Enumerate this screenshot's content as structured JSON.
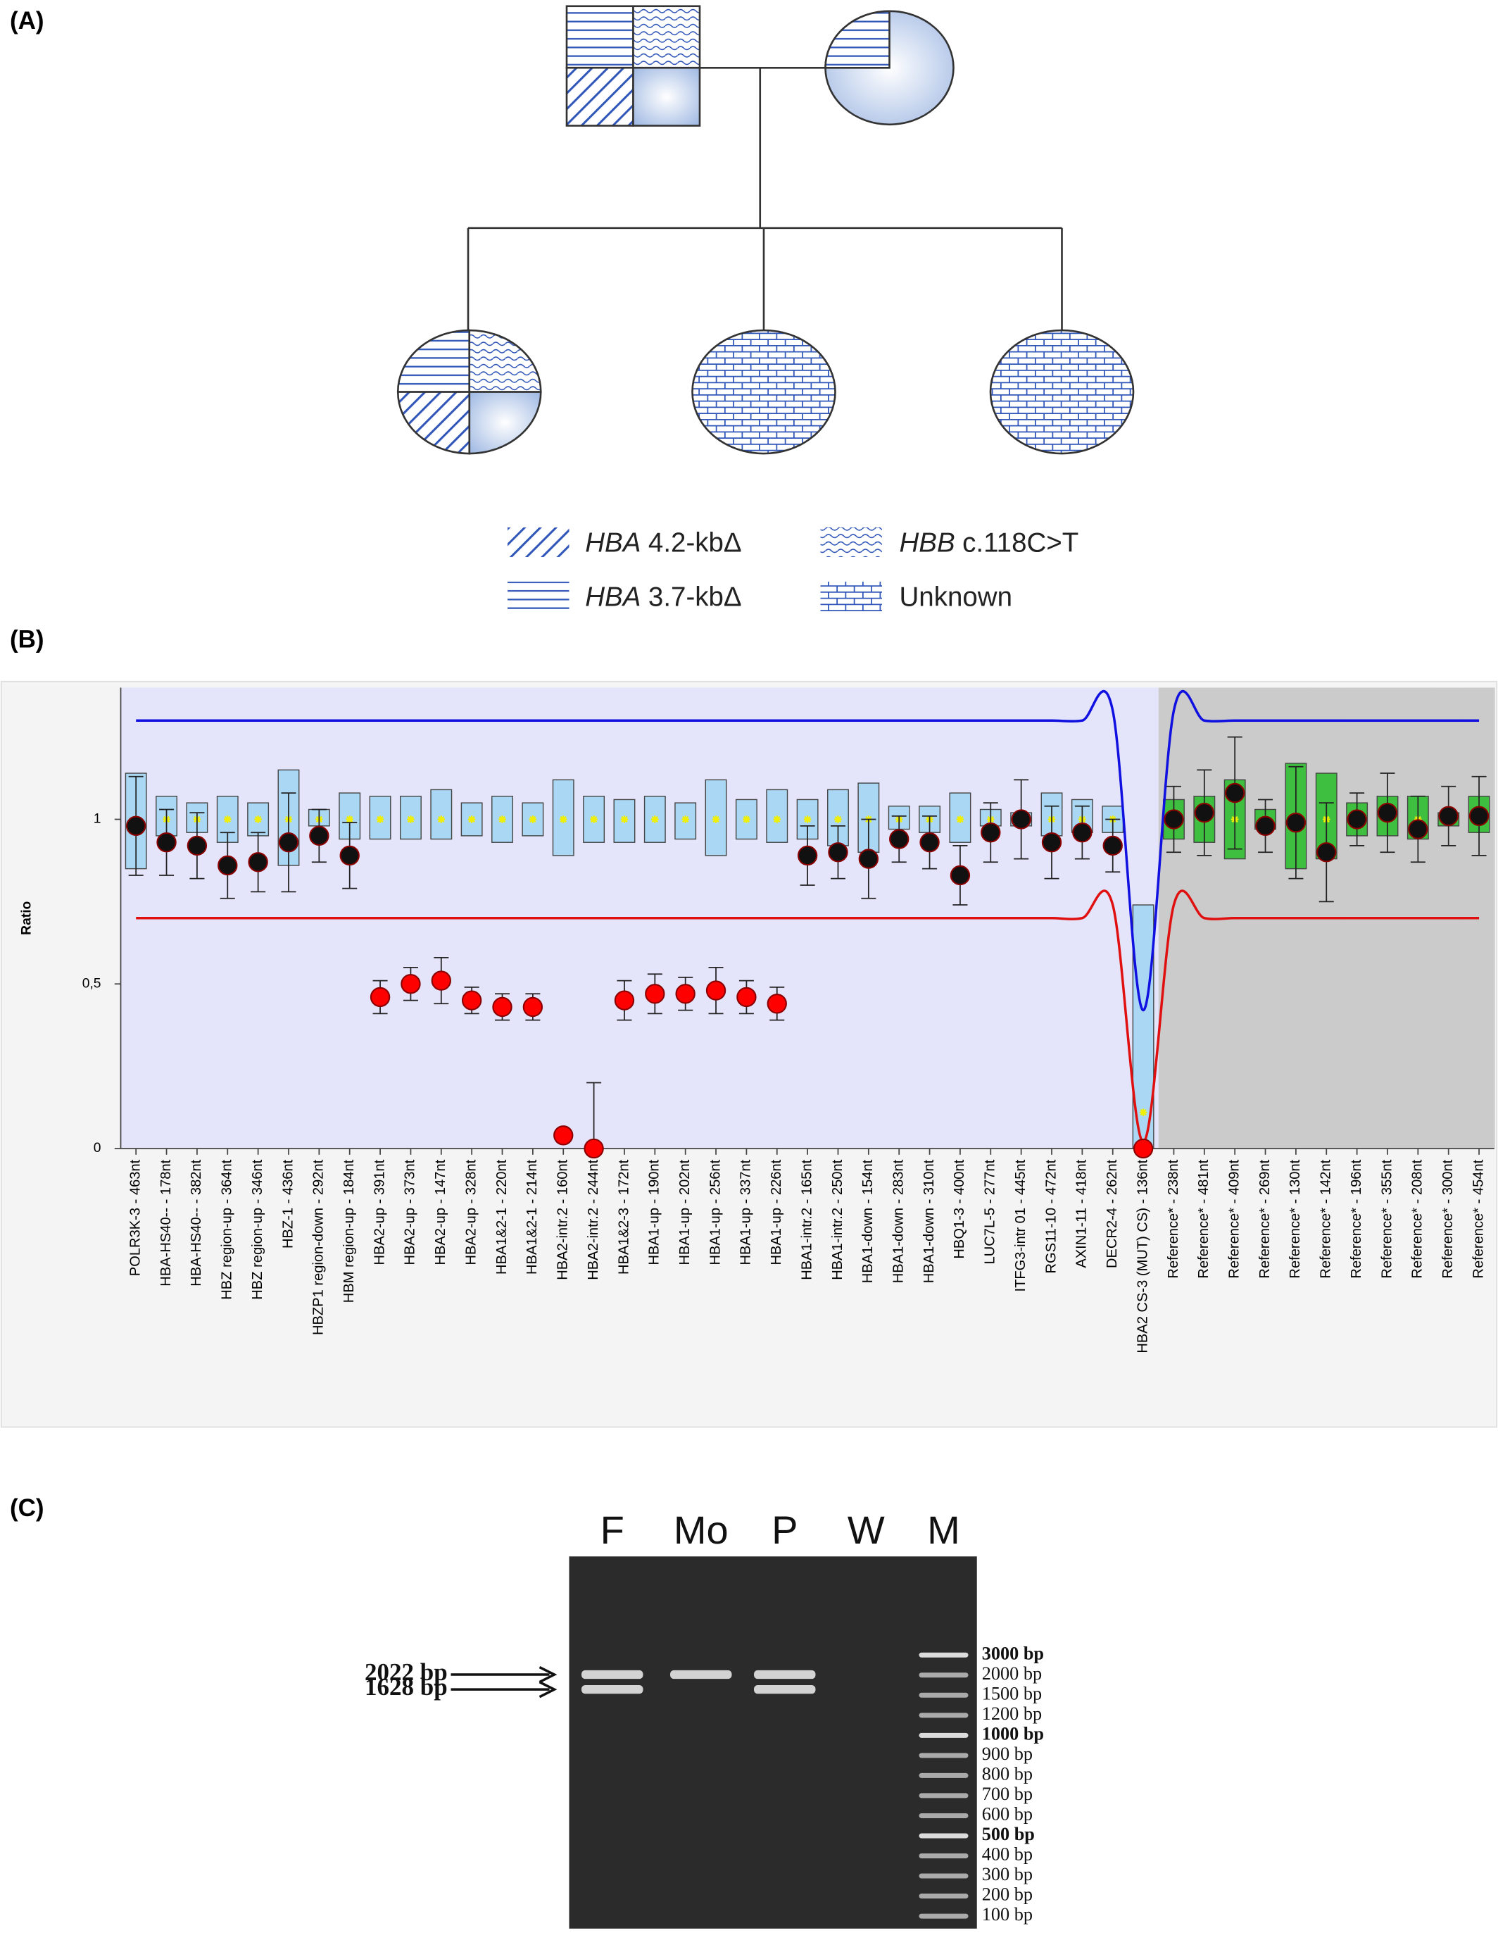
{
  "panel_labels": [
    "(A)",
    "(B)",
    "(C)"
  ],
  "pedigree": {
    "legend": [
      {
        "gene": "HBA",
        "text": "4.2-kbΔ"
      },
      {
        "gene": "HBB",
        "text": "c.118C>T"
      },
      {
        "gene": "HBA",
        "text": "3.7-kbΔ"
      },
      {
        "text": "Unknown"
      }
    ]
  },
  "chart_data": {
    "type": "box",
    "ylabel": "Ratio",
    "ylim": [
      0,
      1.4
    ],
    "yticks": [
      0,
      {
        "value": 0.5,
        "label": "0,5"
      },
      1
    ],
    "categories": [
      "POLR3K-3 - 463nt",
      "HBA-HS40-- - 178nt",
      "HBA-HS40-- - 382nt",
      "HBZ region-up - 364nt",
      "HBZ region-up - 346nt",
      "HBZ-1 - 436nt",
      "HBZP1 region-down - 292nt",
      "HBM region-up - 184nt",
      "HBA2-up - 391nt",
      "HBA2-up - 373nt",
      "HBA2-up - 147nt",
      "HBA2-up - 328nt",
      "HBA1&2-1 - 220nt",
      "HBA1&2-1 - 214nt",
      "HBA2-intr.2 - 160nt",
      "HBA2-intr.2 - 244nt",
      "HBA1&2-3 - 172nt",
      "HBA1-up - 190nt",
      "HBA1-up - 202nt",
      "HBA1-up - 256nt",
      "HBA1-up - 337nt",
      "HBA1-up - 226nt",
      "HBA1-intr.2 - 165nt",
      "HBA1-intr.2 - 250nt",
      "HBA1-down - 154nt",
      "HBA1-down - 283nt",
      "HBA1-down - 310nt",
      "HBQ1-3 - 400nt",
      "LUC7L-5 - 277nt",
      "ITFG3-intr 01 - 445nt",
      "RGS11-10 - 472nt",
      "AXIN1-11 - 418nt",
      "DECR2-4 - 262nt",
      "HBA2 CS-3 (MUT) CS) - 136nt",
      "Reference* - 238nt",
      "Reference* - 481nt",
      "Reference* - 409nt",
      "Reference* - 269nt",
      "Reference* - 130nt",
      "Reference* - 142nt",
      "Reference* - 196nt",
      "Reference* - 355nt",
      "Reference* - 208nt",
      "Reference* - 300nt",
      "Reference* - 454nt"
    ],
    "values": [
      0.98,
      0.93,
      0.92,
      0.86,
      0.87,
      0.93,
      0.95,
      0.89,
      0.46,
      0.5,
      0.51,
      0.45,
      0.43,
      0.43,
      0.04,
      0,
      0.45,
      0.47,
      0.47,
      0.48,
      0.46,
      0.44,
      0.89,
      0.9,
      0.88,
      0.94,
      0.93,
      0.83,
      0.96,
      1.0,
      0.93,
      0.96,
      0.92,
      0,
      1.0,
      1.02,
      1.08,
      0.98,
      0.99,
      0.9,
      1.0,
      1.02,
      0.97,
      1.01,
      1.01
    ],
    "errors": [
      0.15,
      0.1,
      0.1,
      0.1,
      0.09,
      0.15,
      0.08,
      0.1,
      0.05,
      0.05,
      0.07,
      0.04,
      0.04,
      0.04,
      0.01,
      0.2,
      0.06,
      0.06,
      0.05,
      0.07,
      0.05,
      0.05,
      0.09,
      0.08,
      0.12,
      0.07,
      0.08,
      0.09,
      0.09,
      0.12,
      0.11,
      0.08,
      0.08,
      0,
      0.1,
      0.13,
      0.17,
      0.08,
      0.17,
      0.15,
      0.08,
      0.12,
      0.1,
      0.09,
      0.12
    ],
    "box_low": [
      0.85,
      0.95,
      0.96,
      0.93,
      0.95,
      0.86,
      0.98,
      0.94,
      0.94,
      0.94,
      0.94,
      0.95,
      0.93,
      0.95,
      0.89,
      0.93,
      0.93,
      0.93,
      0.94,
      0.89,
      0.94,
      0.93,
      0.94,
      0.92,
      0.9,
      0.97,
      0.96,
      0.93,
      0.98,
      0.98,
      0.95,
      0.96,
      0.96,
      0,
      0.94,
      0.93,
      0.88,
      0.97,
      0.85,
      0.88,
      0.95,
      0.95,
      0.94,
      0.98,
      0.96
    ],
    "box_high": [
      1.14,
      1.07,
      1.05,
      1.07,
      1.05,
      1.15,
      1.03,
      1.08,
      1.07,
      1.07,
      1.09,
      1.05,
      1.07,
      1.05,
      1.12,
      1.07,
      1.06,
      1.07,
      1.05,
      1.12,
      1.06,
      1.09,
      1.06,
      1.09,
      1.11,
      1.04,
      1.04,
      1.08,
      1.03,
      1.02,
      1.08,
      1.06,
      1.04,
      0.74,
      1.06,
      1.07,
      1.12,
      1.03,
      1.17,
      1.14,
      1.05,
      1.07,
      1.07,
      1.02,
      1.07
    ],
    "medians": [
      1,
      1,
      1,
      1,
      1,
      1,
      1,
      1,
      1,
      1,
      1,
      1,
      1,
      1,
      1,
      1,
      1,
      1,
      1,
      1,
      1,
      1,
      1,
      1,
      1,
      1,
      1,
      1,
      1,
      1,
      1,
      1,
      1,
      0.11,
      1,
      1,
      1,
      1,
      1,
      1,
      1,
      1,
      1,
      1,
      1
    ],
    "upper_limit": [
      1.3,
      1.3,
      1.3,
      1.3,
      1.3,
      1.3,
      1.3,
      1.3,
      1.3,
      1.3,
      1.3,
      1.3,
      1.3,
      1.3,
      1.3,
      1.3,
      1.3,
      1.3,
      1.3,
      1.3,
      1.3,
      1.3,
      1.3,
      1.3,
      1.3,
      1.3,
      1.3,
      1.3,
      1.3,
      1.3,
      1.3,
      1.3,
      1.33,
      0.42,
      1.33,
      1.3,
      1.3,
      1.3,
      1.3,
      1.3,
      1.3,
      1.3,
      1.3,
      1.3,
      1.3
    ],
    "lower_limit": [
      0.7,
      0.7,
      0.7,
      0.7,
      0.7,
      0.7,
      0.7,
      0.7,
      0.7,
      0.7,
      0.7,
      0.7,
      0.7,
      0.7,
      0.7,
      0.7,
      0.7,
      0.7,
      0.7,
      0.7,
      0.7,
      0.7,
      0.7,
      0.7,
      0.7,
      0.7,
      0.7,
      0.7,
      0.7,
      0.7,
      0.7,
      0.7,
      0.74,
      0.02,
      0.74,
      0.7,
      0.7,
      0.7,
      0.7,
      0.7,
      0.7,
      0.7,
      0.7,
      0.7,
      0.7
    ],
    "upper_color": "#1010e0",
    "lower_color": "#e01010",
    "box_colors": [
      "#aad7f3",
      "#aad7f3",
      "#aad7f3",
      "#aad7f3",
      "#aad7f3",
      "#aad7f3",
      "#aad7f3",
      "#aad7f3",
      "#aad7f3",
      "#aad7f3",
      "#aad7f3",
      "#aad7f3",
      "#aad7f3",
      "#aad7f3",
      "#aad7f3",
      "#aad7f3",
      "#aad7f3",
      "#aad7f3",
      "#aad7f3",
      "#aad7f3",
      "#aad7f3",
      "#aad7f3",
      "#aad7f3",
      "#aad7f3",
      "#aad7f3",
      "#aad7f3",
      "#aad7f3",
      "#aad7f3",
      "#aad7f3",
      "#aad7f3",
      "#aad7f3",
      "#aad7f3",
      "#aad7f3",
      "#aad7f3",
      "#3fbf3f",
      "#3fbf3f",
      "#3fbf3f",
      "#3fbf3f",
      "#3fbf3f",
      "#3fbf3f",
      "#3fbf3f",
      "#3fbf3f",
      "#3fbf3f",
      "#3fbf3f",
      "#3fbf3f"
    ],
    "background_colors": [
      "#e4e4fa",
      "#e4e4fa",
      "#e4e4fa",
      "#e4e4fa",
      "#e4e4fa",
      "#e4e4fa",
      "#e4e4fa",
      "#e4e4fa",
      "#e4e4fa",
      "#e4e4fa",
      "#e4e4fa",
      "#e4e4fa",
      "#e4e4fa",
      "#e4e4fa",
      "#e4e4fa",
      "#e4e4fa",
      "#e4e4fa",
      "#e4e4fa",
      "#e4e4fa",
      "#e4e4fa",
      "#e4e4fa",
      "#e4e4fa",
      "#e4e4fa",
      "#e4e4fa",
      "#e4e4fa",
      "#e4e4fa",
      "#e4e4fa",
      "#e4e4fa",
      "#e4e4fa",
      "#e4e4fa",
      "#e4e4fa",
      "#e4e4fa",
      "#e4e4fa",
      "#e4e4fa",
      "#cbcbcb",
      "#cbcbcb",
      "#cbcbcb",
      "#cbcbcb",
      "#cbcbcb",
      "#cbcbcb",
      "#cbcbcb",
      "#cbcbcb",
      "#cbcbcb",
      "#cbcbcb",
      "#cbcbcb"
    ],
    "dot_colors": [
      "#111",
      "#111",
      "#111",
      "#111",
      "#111",
      "#111",
      "#111",
      "#111",
      "#ff0000",
      "#ff0000",
      "#ff0000",
      "#ff0000",
      "#ff0000",
      "#ff0000",
      "#ff0000",
      "#ff0000",
      "#ff0000",
      "#ff0000",
      "#ff0000",
      "#ff0000",
      "#ff0000",
      "#ff0000",
      "#111",
      "#111",
      "#111",
      "#111",
      "#111",
      "#111",
      "#111",
      "#111",
      "#111",
      "#111",
      "#111",
      "#ff0000",
      "#111",
      "#111",
      "#111",
      "#111",
      "#111",
      "#111",
      "#111",
      "#111",
      "#111",
      "#111",
      "#111"
    ]
  },
  "gel": {
    "lanes": [
      {
        "name": "F",
        "bands": [
          2022,
          1628
        ]
      },
      {
        "name": "Mo",
        "bands": [
          2022
        ]
      },
      {
        "name": "P",
        "bands": [
          2022,
          1628
        ]
      },
      {
        "name": "W",
        "bands": []
      },
      {
        "name": "M",
        "bands": []
      }
    ],
    "band_labels": [
      {
        "value": 2022,
        "label": "2022 bp"
      },
      {
        "value": 1628,
        "label": "1628 bp"
      }
    ],
    "ladder": [
      {
        "value": 3000,
        "label": "3000 bp",
        "bold": true
      },
      {
        "value": 2000,
        "label": "2000 bp"
      },
      {
        "value": 1500,
        "label": "1500 bp"
      },
      {
        "value": 1200,
        "label": "1200 bp"
      },
      {
        "value": 1000,
        "label": "1000 bp",
        "bold": true
      },
      {
        "value": 900,
        "label": "900 bp"
      },
      {
        "value": 800,
        "label": "800 bp"
      },
      {
        "value": 700,
        "label": "700 bp"
      },
      {
        "value": 600,
        "label": "600 bp"
      },
      {
        "value": 500,
        "label": "500 bp",
        "bold": true
      },
      {
        "value": 400,
        "label": "400 bp"
      },
      {
        "value": 300,
        "label": "300 bp"
      },
      {
        "value": 200,
        "label": "200 bp"
      },
      {
        "value": 100,
        "label": "100 bp"
      }
    ]
  }
}
